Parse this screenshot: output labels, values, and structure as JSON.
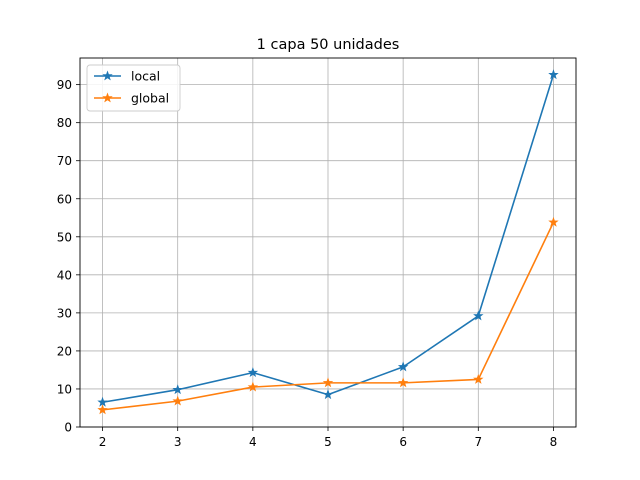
{
  "chart_data": {
    "type": "line",
    "title": "1 capa 50 unidades",
    "xlabel": "",
    "ylabel": "",
    "x": [
      2,
      3,
      4,
      5,
      6,
      7,
      8
    ],
    "xlim": [
      1.7,
      8.3
    ],
    "ylim": [
      0,
      97
    ],
    "xticks": [
      2,
      3,
      4,
      5,
      6,
      7,
      8
    ],
    "yticks": [
      0,
      10,
      20,
      30,
      40,
      50,
      60,
      70,
      80,
      90
    ],
    "grid": true,
    "legend": "top-left",
    "marker": "star",
    "series": [
      {
        "name": "local",
        "color": "#1f77b4",
        "values": [
          6.5,
          9.8,
          14.3,
          8.5,
          15.8,
          29.2,
          92.6
        ]
      },
      {
        "name": "global",
        "color": "#ff7f0e",
        "values": [
          4.5,
          6.8,
          10.5,
          11.6,
          11.6,
          12.5,
          53.8
        ]
      }
    ]
  }
}
